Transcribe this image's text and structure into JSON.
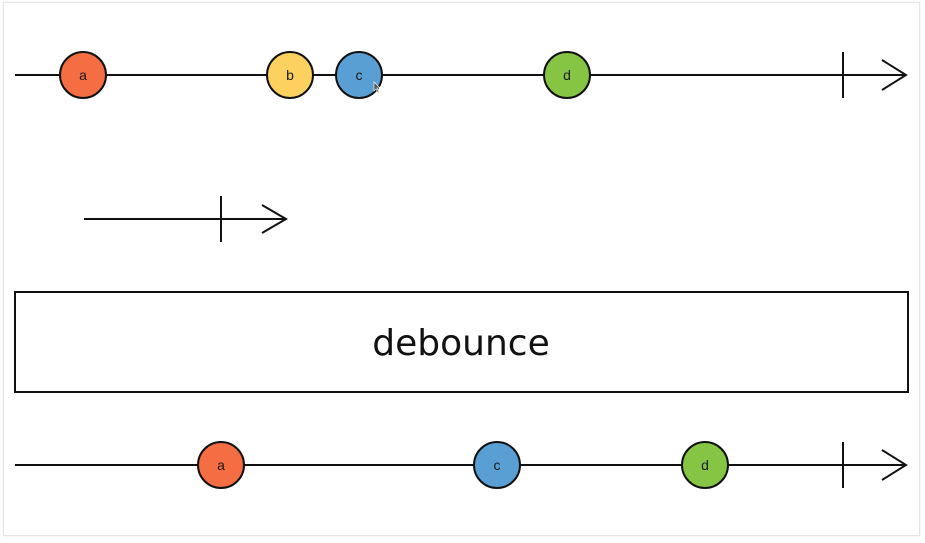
{
  "diagram": {
    "operator_label": "debounce",
    "colors": {
      "line": "#111111",
      "orange": "#f46d43",
      "yellow": "#fdd160",
      "blue": "#5a9fd4",
      "green": "#86c543",
      "box_fill": "#ffffff"
    },
    "input_marbles": [
      {
        "label": "a",
        "color": "orange"
      },
      {
        "label": "b",
        "color": "yellow"
      },
      {
        "label": "c",
        "color": "blue"
      },
      {
        "label": "d",
        "color": "green"
      }
    ],
    "output_marbles": [
      {
        "label": "a",
        "color": "orange"
      },
      {
        "label": "c",
        "color": "blue"
      },
      {
        "label": "d",
        "color": "green"
      }
    ]
  }
}
